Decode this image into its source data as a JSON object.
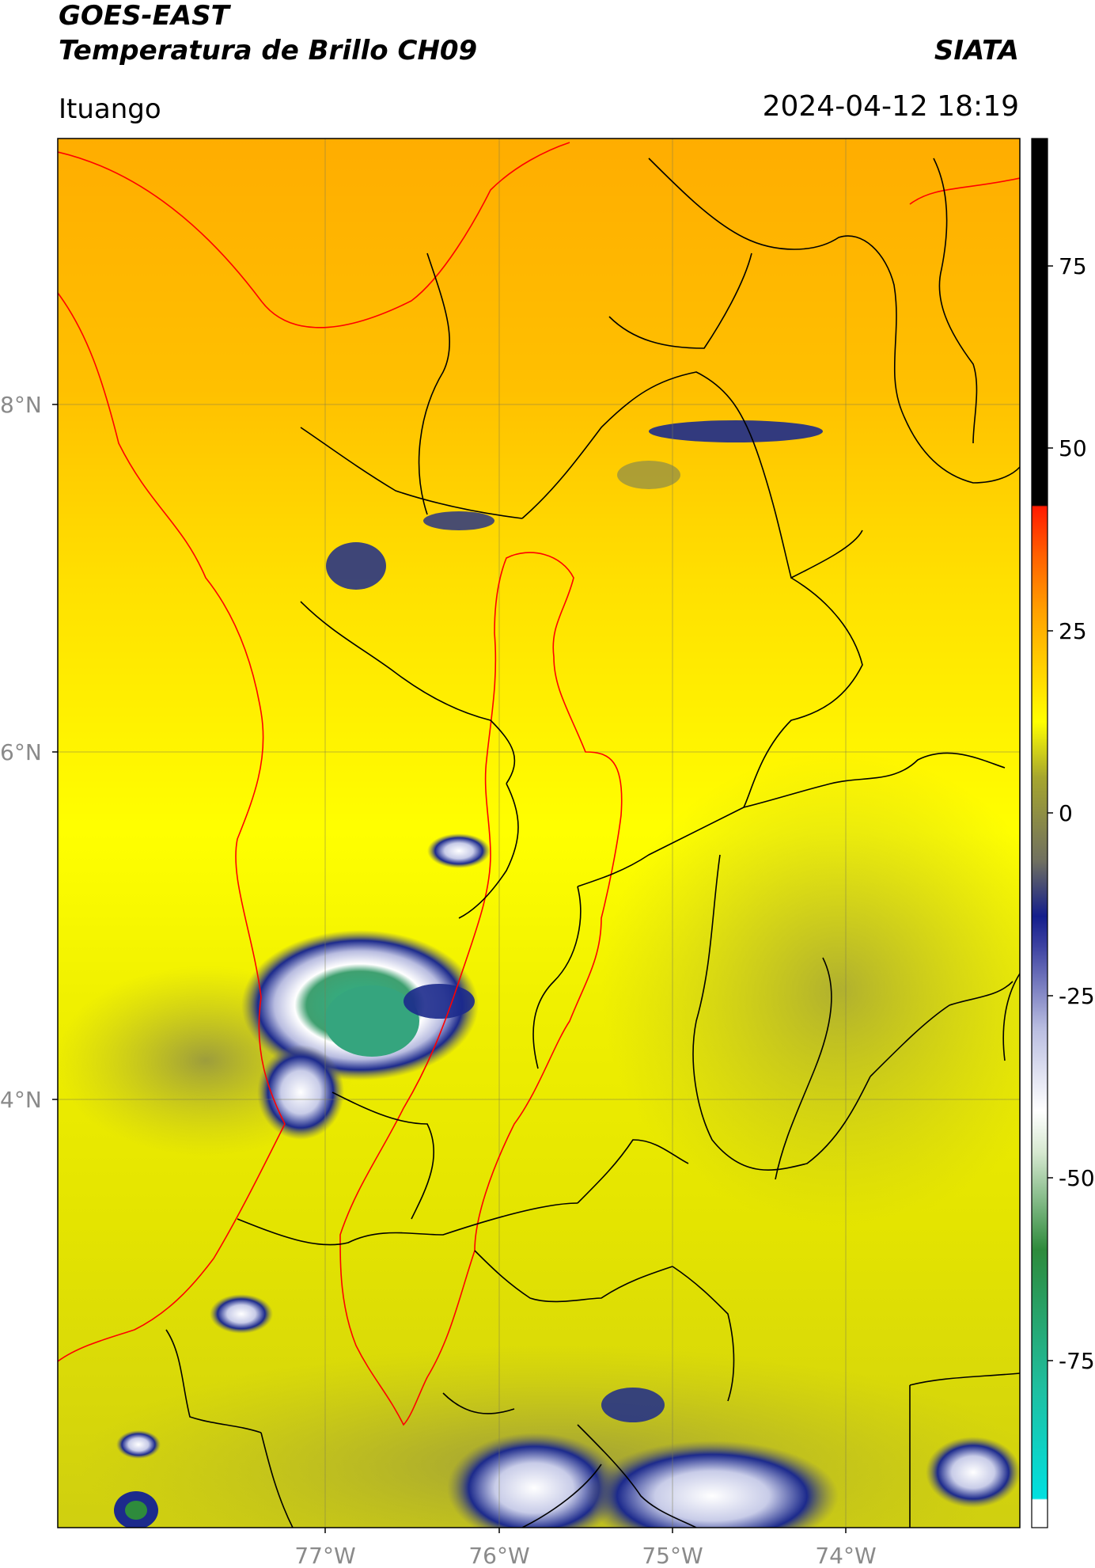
{
  "header": {
    "satellite": "GOES-EAST",
    "product": "Temperatura de Brillo CH09",
    "organization": "SIATA",
    "location": "Ituango",
    "datetime": "2024-04-12 18:19"
  },
  "map": {
    "lat_labels": [
      "8°N",
      "6°N",
      "4°N"
    ],
    "lon_labels": [
      "77°W",
      "76°W",
      "75°W",
      "74°W"
    ]
  },
  "colorbar": {
    "tick_labels": [
      "75",
      "50",
      "25",
      "0",
      "-25",
      "-50",
      "-75"
    ],
    "range": [
      -100,
      90
    ],
    "colors": {
      "black_top": "#000000",
      "red": "#ff1a00",
      "orange": "#ffa500",
      "yellow": "#ffff00",
      "olive": "#a6a62e",
      "gray": "#707060",
      "navy": "#141e8c",
      "lavender": "#b8bce0",
      "white": "#ffffff",
      "green": "#2e8b3c",
      "teal": "#1fbfa0",
      "cyan": "#00e0e0"
    }
  },
  "legend_colors": {
    "border_departments": "#000000",
    "border_basin": "#ff0000"
  }
}
